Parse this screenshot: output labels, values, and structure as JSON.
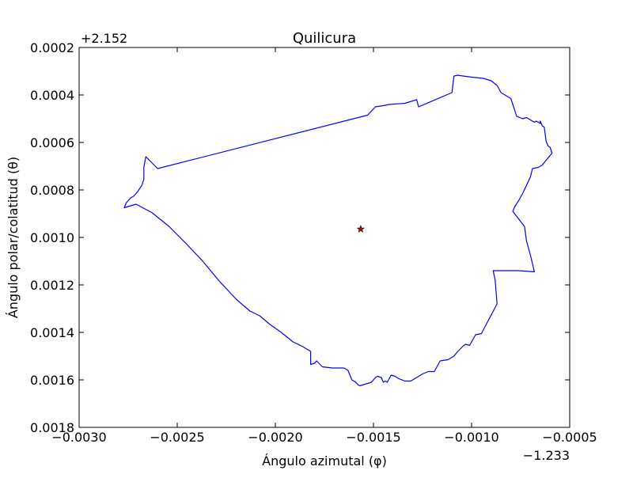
{
  "chart_data": {
    "type": "line",
    "title": "Quilicura",
    "xlabel": "Ángulo azimutal (φ)",
    "ylabel": "Ángulo polar/colatitud (θ)",
    "x_offset_label": "−1.233",
    "y_offset_label": "+2.152",
    "xlim": [
      -0.003,
      -0.0005
    ],
    "ylim": [
      0.0018,
      0.0002
    ],
    "y_inverted": true,
    "grid": false,
    "xticks": [
      -0.003,
      -0.0025,
      -0.002,
      -0.0015,
      -0.001,
      -0.0005
    ],
    "xtick_labels": [
      "−0.0030",
      "−0.0025",
      "−0.0020",
      "−0.0015",
      "−0.0010",
      "−0.0005"
    ],
    "yticks": [
      0.0002,
      0.0004,
      0.0006,
      0.0008,
      0.001,
      0.0012,
      0.0014,
      0.0016,
      0.0018
    ],
    "ytick_labels": [
      "0.0002",
      "0.0004",
      "0.0006",
      "0.0008",
      "0.0010",
      "0.0012",
      "0.0014",
      "0.0016",
      "0.0018"
    ],
    "series": [
      {
        "color": "#0000ff",
        "x": [
          -0.00109,
          -0.00107,
          -0.001,
          -0.00094,
          -0.0009,
          -0.00087,
          -0.00085,
          -0.00082,
          -0.0008,
          -0.00079,
          -0.00077,
          -0.00074,
          -0.00072,
          -0.0007,
          -0.00068,
          -0.00067,
          -0.00065,
          -0.00065,
          -0.00064,
          -0.00063,
          -0.00062,
          -0.00061,
          -0.0006,
          -0.00059,
          -0.00061,
          -0.00064,
          -0.00066,
          -0.00069,
          -0.0007,
          -0.00074,
          -0.00076,
          -0.00078,
          -0.00079,
          -0.00073,
          -0.00072,
          -0.0007,
          -0.00068,
          -0.00076,
          -0.00089,
          -0.00088,
          -0.00087,
          -0.00095,
          -0.00098,
          -0.00101,
          -0.00103,
          -0.00104,
          -0.00107,
          -0.00109,
          -0.00112,
          -0.00116,
          -0.00119,
          -0.00122,
          -0.00125,
          -0.00128,
          -0.00131,
          -0.00134,
          -0.00137,
          -0.00139,
          -0.00141,
          -0.00143,
          -0.00144,
          -0.00145,
          -0.00146,
          -0.00148,
          -0.00149,
          -0.00151,
          -0.00153,
          -0.00155,
          -0.00157,
          -0.00158,
          -0.00159,
          -0.00161,
          -0.00163,
          -0.00165,
          -0.00167,
          -0.00171,
          -0.00176,
          -0.00179,
          -0.0018,
          -0.00182,
          -0.00182,
          -0.00182,
          -0.00186,
          -0.00191,
          -0.00197,
          -0.00203,
          -0.00208,
          -0.00213,
          -0.0022,
          -0.00229,
          -0.00237,
          -0.00245,
          -0.00254,
          -0.00263,
          -0.00271,
          -0.00277,
          -0.00276,
          -0.00274,
          -0.00272,
          -0.0027,
          -0.00268,
          -0.00267,
          -0.00267,
          -0.00266,
          -0.0026,
          -0.00153,
          -0.00149,
          -0.00145,
          -0.00142,
          -0.00134,
          -0.00128,
          -0.00127,
          -0.0011,
          -0.00109
        ],
        "y": [
          0.00032,
          0.000317,
          0.000325,
          0.00033,
          0.00034,
          0.00036,
          0.00039,
          0.000405,
          0.000415,
          0.00044,
          0.00049,
          0.0005,
          0.000495,
          0.000505,
          0.000515,
          0.00051,
          0.00052,
          0.00051,
          0.00053,
          0.000535,
          0.000595,
          0.000615,
          0.00062,
          0.000645,
          0.000665,
          0.000695,
          0.000705,
          0.00071,
          0.000745,
          0.000815,
          0.000845,
          0.00087,
          0.00089,
          0.000955,
          0.001015,
          0.001075,
          0.001145,
          0.00114,
          0.00114,
          0.00118,
          0.00128,
          0.001405,
          0.00141,
          0.001455,
          0.00145,
          0.001455,
          0.00148,
          0.0015,
          0.001515,
          0.00152,
          0.001565,
          0.001565,
          0.001575,
          0.00159,
          0.001605,
          0.001605,
          0.001595,
          0.001585,
          0.00158,
          0.00161,
          0.001605,
          0.00161,
          0.00159,
          0.001585,
          0.00159,
          0.00161,
          0.001615,
          0.00162,
          0.001625,
          0.00162,
          0.00161,
          0.0016,
          0.00156,
          0.00155,
          0.00155,
          0.00155,
          0.001545,
          0.00152,
          0.00153,
          0.001535,
          0.00149,
          0.00148,
          0.00146,
          0.00144,
          0.0014,
          0.001365,
          0.00133,
          0.00131,
          0.00126,
          0.00118,
          0.0011,
          0.00103,
          0.000955,
          0.000895,
          0.00086,
          0.000875,
          0.000855,
          0.000835,
          0.000825,
          0.000805,
          0.00078,
          0.000755,
          0.000705,
          0.00066,
          0.00071,
          0.000485,
          0.00045,
          0.000445,
          0.00044,
          0.000435,
          0.00042,
          0.00045,
          0.00039,
          0.00032
        ]
      }
    ],
    "marker": {
      "x": -0.001565,
      "y": 0.000965,
      "symbol": "star",
      "face_color": "#cc0000",
      "edge_color": "#000000"
    }
  }
}
